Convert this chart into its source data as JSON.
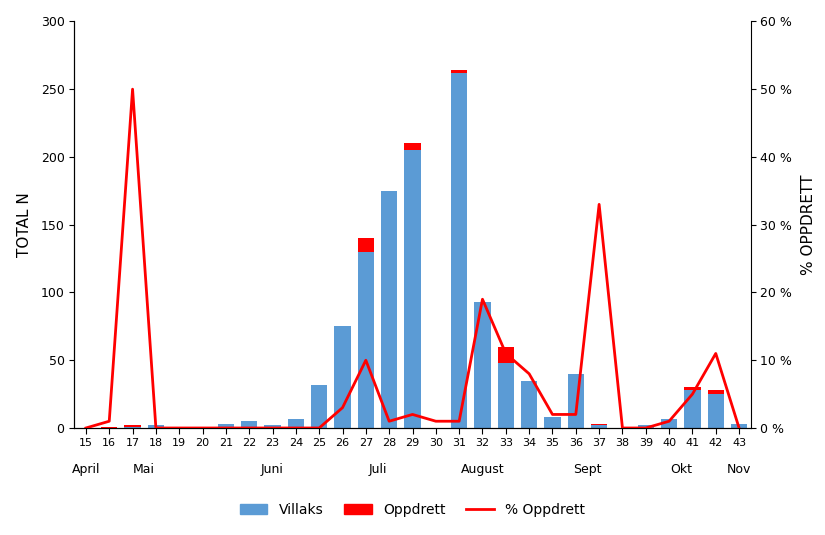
{
  "weeks": [
    15,
    16,
    17,
    18,
    19,
    20,
    21,
    22,
    23,
    24,
    25,
    26,
    27,
    28,
    29,
    30,
    31,
    32,
    33,
    34,
    35,
    36,
    37,
    38,
    39,
    40,
    41,
    42,
    43
  ],
  "villaks": [
    0,
    0,
    1,
    2,
    0,
    0,
    3,
    5,
    2,
    7,
    32,
    75,
    130,
    175,
    205,
    0,
    262,
    93,
    48,
    35,
    8,
    40,
    2,
    0,
    2,
    7,
    28,
    25,
    3
  ],
  "oppdrett": [
    0,
    1,
    1,
    0,
    0,
    0,
    0,
    0,
    0,
    0,
    0,
    0,
    10,
    0,
    5,
    0,
    2,
    0,
    12,
    0,
    0,
    0,
    1,
    0,
    0,
    0,
    2,
    3,
    0
  ],
  "pct_oppdrett": [
    0,
    1,
    50,
    0,
    0,
    0,
    0,
    0,
    0,
    0,
    0,
    3,
    10,
    1,
    2,
    1,
    1,
    19,
    11,
    8,
    2,
    2,
    33,
    0,
    0,
    1,
    5,
    11,
    0
  ],
  "month_tick_positions": [
    15,
    17.5,
    23,
    27.5,
    32,
    36.5,
    40.5,
    43
  ],
  "month_labels": [
    "April",
    "Mai",
    "Juni",
    "Juli",
    "August",
    "Sept",
    "Okt",
    "Nov"
  ],
  "ylabel_left": "TOTAL N",
  "ylabel_right": "% OPPDRETT",
  "ylim_left": [
    0,
    300
  ],
  "ylim_right": [
    0,
    60
  ],
  "yticks_left": [
    0,
    50,
    100,
    150,
    200,
    250,
    300
  ],
  "yticks_right": [
    0,
    10,
    20,
    30,
    40,
    50,
    60
  ],
  "ytick_right_labels": [
    "0 %",
    "10 %",
    "20 %",
    "30 %",
    "40 %",
    "50 %",
    "60 %"
  ],
  "bar_color_villaks": "#5B9BD5",
  "bar_color_oppdrett": "#FF0000",
  "line_color": "#FF0000",
  "background_color": "#FFFFFF",
  "bar_width": 0.7
}
